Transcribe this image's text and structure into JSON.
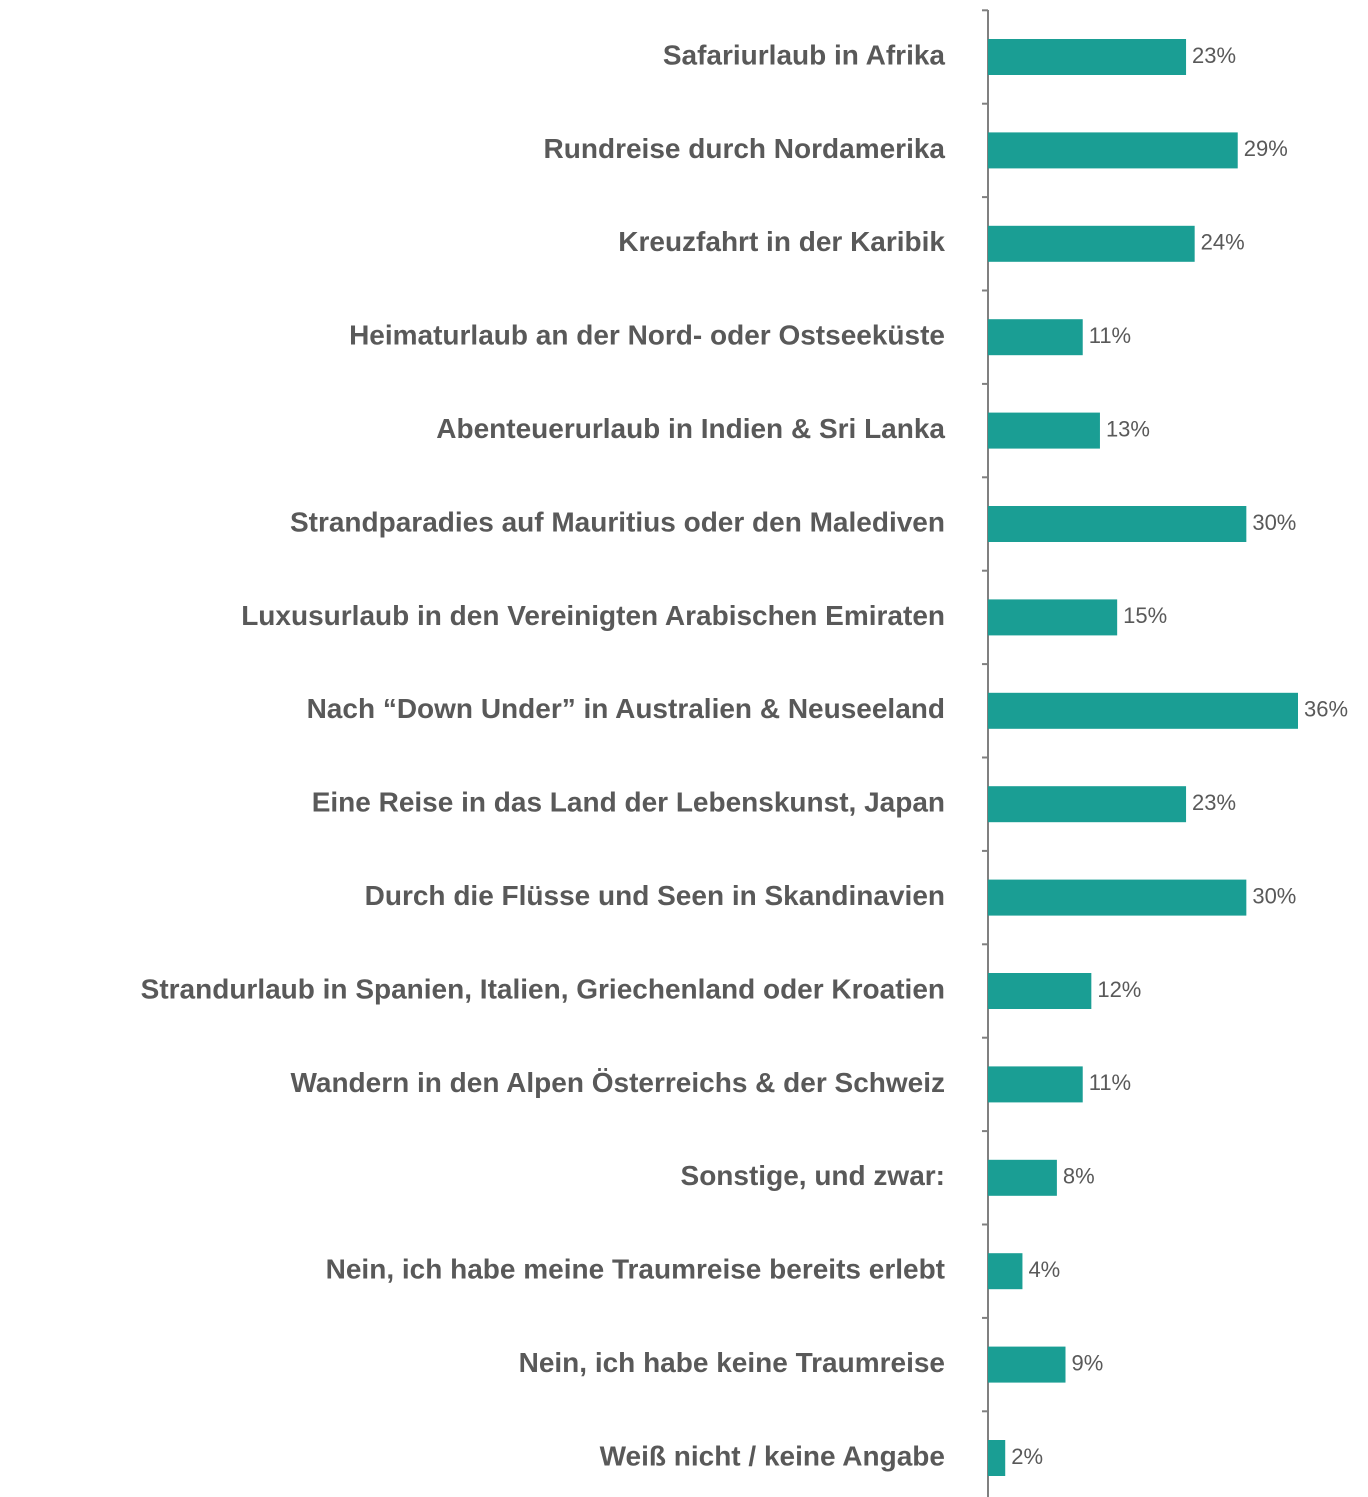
{
  "chart_data": {
    "type": "bar",
    "orientation": "horizontal",
    "categories": [
      "Safariurlaub in Afrika",
      "Rundreise durch Nordamerika",
      "Kreuzfahrt in der Karibik",
      "Heimaturlaub an der Nord- oder Ostseeküste",
      "Abenteuerurlaub in Indien & Sri Lanka",
      "Strandparadies auf Mauritius oder den Malediven",
      "Luxusurlaub in den Vereinigten Arabischen Emiraten",
      "Nach “Down Under”  in Australien & Neuseeland",
      "Eine Reise in das Land der Lebenskunst, Japan",
      "Durch die Flüsse und Seen in Skandinavien",
      "Strandurlaub in Spanien, Italien, Griechenland oder Kroatien",
      "Wandern in den Alpen Österreichs & der Schweiz",
      "Sonstige, und zwar:",
      "Nein, ich habe meine Traumreise bereits erlebt",
      "Nein, ich habe keine Traumreise",
      "Weiß nicht / keine Angabe"
    ],
    "values": [
      23,
      29,
      24,
      11,
      13,
      30,
      15,
      36,
      23,
      30,
      12,
      11,
      8,
      4,
      9,
      2
    ],
    "value_labels": [
      "23%",
      "29%",
      "24%",
      "11%",
      "13%",
      "30%",
      "15%",
      "36%",
      "23%",
      "30%",
      "12%",
      "11%",
      "8%",
      "4%",
      "9%",
      "2%"
    ],
    "color": "#1a9e94"
  }
}
